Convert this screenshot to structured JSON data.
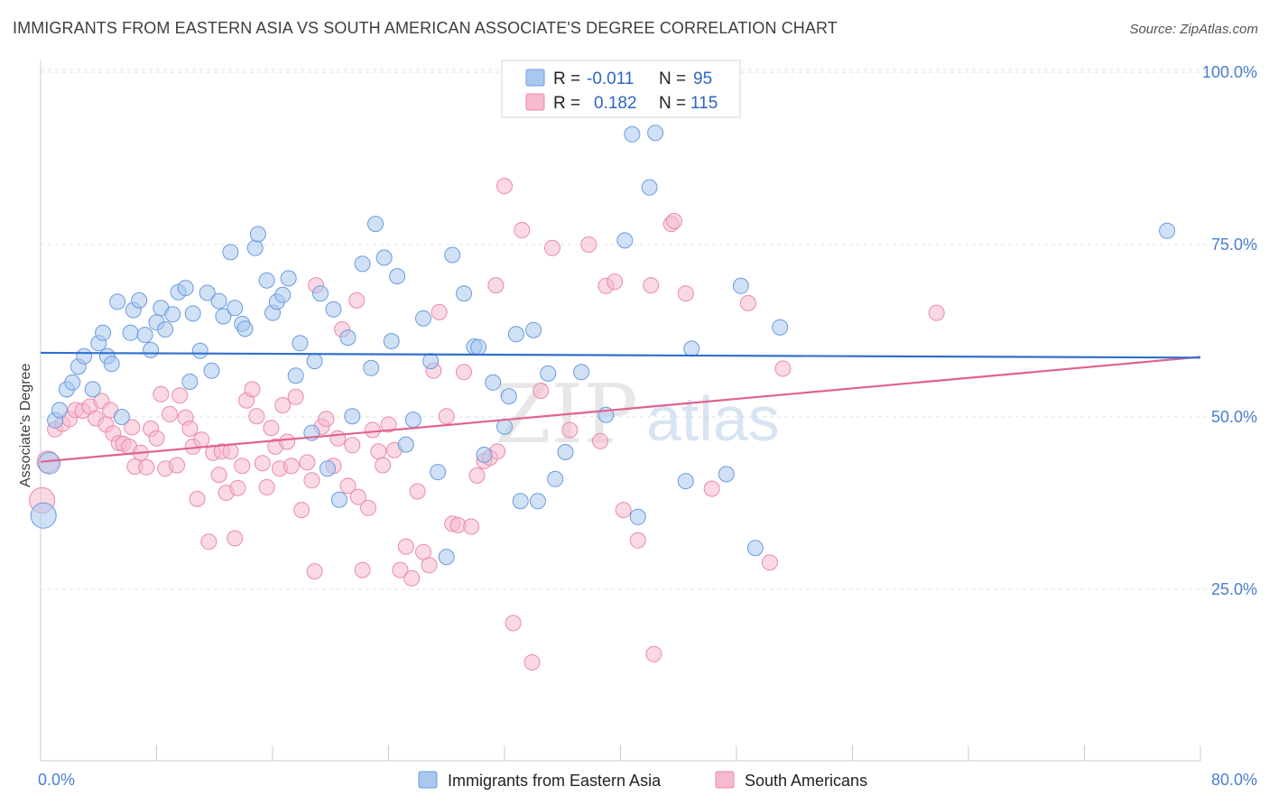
{
  "title": "IMMIGRANTS FROM EASTERN ASIA VS SOUTH AMERICAN ASSOCIATE'S DEGREE CORRELATION CHART",
  "source": "Source: ZipAtlas.com",
  "watermark": {
    "zip": "ZIP",
    "atlas": "atlas"
  },
  "colors": {
    "blue_fill": "#aac8ef",
    "blue_stroke": "#6b9be0",
    "blue_line": "#2f6fce",
    "pink_fill": "#f6b9cd",
    "pink_stroke": "#ea8aab",
    "pink_line": "#e0628f",
    "grid": "#dde2e8",
    "tick_text": "#4a7fd0"
  },
  "legend": {
    "r_label": "R =",
    "n_label": "N =",
    "rows": [
      {
        "r": "-0.011",
        "n": "95"
      },
      {
        "r": "0.182",
        "n": "115"
      }
    ]
  },
  "chart_data": {
    "type": "scatter",
    "title": "IMMIGRANTS FROM EASTERN ASIA VS SOUTH AMERICAN ASSOCIATE'S DEGREE CORRELATION CHART",
    "xlabel": "",
    "ylabel": "Associate's Degree",
    "xlim": [
      0,
      80
    ],
    "ylim": [
      0,
      105
    ],
    "x_ticks": [
      "0.0%",
      "80.0%"
    ],
    "y_ticks": [
      {
        "v": 100,
        "label": "100.0%"
      },
      {
        "v": 75,
        "label": "75.0%"
      },
      {
        "v": 50,
        "label": "50.0%"
      },
      {
        "v": 25,
        "label": "25.0%"
      }
    ],
    "grid": true,
    "legend_position": "top-center",
    "series": [
      {
        "name": "Immigrants from Eastern Asia",
        "color": "#aac8ef",
        "trend": {
          "y0": 59.3,
          "y1": 58.6
        },
        "points": [
          [
            0.2,
            35.7
          ],
          [
            0.6,
            43.3
          ],
          [
            1.0,
            49.5
          ],
          [
            1.3,
            51.0
          ],
          [
            1.8,
            54.0
          ],
          [
            2.2,
            55.0
          ],
          [
            2.6,
            57.3
          ],
          [
            3.0,
            58.8
          ],
          [
            3.6,
            54.0
          ],
          [
            4.0,
            60.7
          ],
          [
            4.3,
            62.2
          ],
          [
            4.6,
            58.8
          ],
          [
            4.9,
            57.7
          ],
          [
            5.3,
            66.7
          ],
          [
            5.6,
            50.0
          ],
          [
            6.2,
            62.2
          ],
          [
            6.4,
            65.5
          ],
          [
            6.8,
            66.9
          ],
          [
            7.2,
            61.9
          ],
          [
            7.6,
            59.7
          ],
          [
            8.0,
            63.7
          ],
          [
            8.3,
            65.8
          ],
          [
            8.6,
            62.7
          ],
          [
            9.1,
            64.9
          ],
          [
            9.5,
            68.1
          ],
          [
            10.0,
            68.7
          ],
          [
            10.3,
            55.1
          ],
          [
            10.5,
            65.0
          ],
          [
            11.0,
            59.6
          ],
          [
            11.5,
            68.0
          ],
          [
            11.8,
            56.7
          ],
          [
            12.3,
            66.8
          ],
          [
            12.6,
            64.6
          ],
          [
            13.1,
            73.9
          ],
          [
            13.4,
            65.8
          ],
          [
            13.9,
            63.5
          ],
          [
            14.1,
            62.8
          ],
          [
            14.8,
            74.5
          ],
          [
            15.0,
            76.5
          ],
          [
            15.6,
            69.8
          ],
          [
            16.0,
            65.1
          ],
          [
            16.3,
            66.7
          ],
          [
            16.7,
            67.7
          ],
          [
            17.1,
            70.1
          ],
          [
            17.6,
            56.0
          ],
          [
            17.9,
            60.7
          ],
          [
            18.7,
            47.7
          ],
          [
            18.9,
            58.1
          ],
          [
            19.3,
            67.9
          ],
          [
            19.8,
            42.5
          ],
          [
            20.2,
            65.6
          ],
          [
            20.6,
            38.0
          ],
          [
            21.2,
            61.5
          ],
          [
            21.5,
            50.1
          ],
          [
            22.2,
            72.2
          ],
          [
            22.8,
            57.1
          ],
          [
            23.1,
            78.0
          ],
          [
            23.7,
            73.1
          ],
          [
            24.2,
            61.0
          ],
          [
            24.6,
            70.4
          ],
          [
            25.2,
            46.0
          ],
          [
            25.7,
            49.6
          ],
          [
            26.4,
            64.3
          ],
          [
            26.9,
            58.1
          ],
          [
            27.4,
            42.0
          ],
          [
            28.0,
            29.7
          ],
          [
            28.4,
            73.5
          ],
          [
            29.2,
            67.9
          ],
          [
            29.9,
            60.2
          ],
          [
            30.2,
            60.1
          ],
          [
            30.6,
            44.5
          ],
          [
            31.2,
            55.0
          ],
          [
            32.0,
            48.6
          ],
          [
            32.3,
            53.0
          ],
          [
            32.8,
            62.0
          ],
          [
            33.1,
            37.8
          ],
          [
            34.0,
            62.6
          ],
          [
            34.3,
            37.8
          ],
          [
            35.0,
            56.3
          ],
          [
            35.5,
            41.0
          ],
          [
            36.2,
            44.9
          ],
          [
            37.3,
            56.5
          ],
          [
            39.0,
            50.3
          ],
          [
            40.3,
            75.6
          ],
          [
            40.8,
            91.0
          ],
          [
            41.2,
            35.5
          ],
          [
            42.0,
            83.3
          ],
          [
            42.4,
            91.2
          ],
          [
            44.5,
            40.7
          ],
          [
            44.9,
            59.9
          ],
          [
            47.3,
            41.7
          ],
          [
            48.3,
            69.0
          ],
          [
            49.3,
            31.0
          ],
          [
            51.0,
            63.0
          ],
          [
            77.7,
            77.0
          ]
        ]
      },
      {
        "name": "South Americans",
        "color": "#f6b9cd",
        "trend": {
          "y0": 43.5,
          "y1": 58.7
        },
        "points": [
          [
            0.1,
            37.9
          ],
          [
            0.5,
            43.5
          ],
          [
            1.0,
            48.2
          ],
          [
            1.5,
            49.0
          ],
          [
            2.0,
            49.7
          ],
          [
            2.4,
            51.0
          ],
          [
            2.9,
            50.9
          ],
          [
            3.4,
            51.5
          ],
          [
            3.8,
            49.8
          ],
          [
            4.2,
            52.3
          ],
          [
            4.5,
            48.9
          ],
          [
            4.8,
            51.0
          ],
          [
            5.0,
            47.6
          ],
          [
            5.4,
            46.2
          ],
          [
            5.7,
            46.1
          ],
          [
            6.1,
            45.7
          ],
          [
            6.3,
            48.5
          ],
          [
            6.5,
            42.8
          ],
          [
            6.9,
            44.8
          ],
          [
            7.3,
            42.7
          ],
          [
            7.6,
            48.3
          ],
          [
            8.0,
            46.9
          ],
          [
            8.3,
            53.3
          ],
          [
            8.6,
            42.5
          ],
          [
            8.9,
            50.4
          ],
          [
            9.4,
            43.0
          ],
          [
            9.6,
            53.1
          ],
          [
            10.0,
            49.9
          ],
          [
            10.3,
            48.3
          ],
          [
            10.5,
            45.7
          ],
          [
            10.8,
            38.1
          ],
          [
            11.1,
            46.7
          ],
          [
            11.6,
            31.9
          ],
          [
            11.9,
            44.8
          ],
          [
            12.3,
            41.6
          ],
          [
            12.5,
            45.0
          ],
          [
            12.8,
            39.0
          ],
          [
            13.1,
            45.0
          ],
          [
            13.4,
            32.4
          ],
          [
            13.6,
            39.7
          ],
          [
            13.9,
            42.9
          ],
          [
            14.2,
            52.4
          ],
          [
            14.6,
            54.0
          ],
          [
            14.9,
            50.1
          ],
          [
            15.3,
            43.3
          ],
          [
            15.6,
            39.8
          ],
          [
            15.9,
            48.4
          ],
          [
            16.2,
            45.7
          ],
          [
            16.5,
            42.5
          ],
          [
            16.7,
            51.7
          ],
          [
            17.0,
            46.4
          ],
          [
            17.3,
            42.9
          ],
          [
            17.6,
            52.9
          ],
          [
            18.0,
            36.5
          ],
          [
            18.4,
            43.4
          ],
          [
            18.7,
            40.8
          ],
          [
            18.9,
            27.6
          ],
          [
            19.0,
            69.1
          ],
          [
            19.4,
            48.6
          ],
          [
            19.7,
            49.7
          ],
          [
            20.2,
            42.9
          ],
          [
            20.5,
            46.9
          ],
          [
            20.8,
            62.7
          ],
          [
            21.2,
            40.0
          ],
          [
            21.5,
            45.9
          ],
          [
            21.9,
            38.4
          ],
          [
            22.2,
            27.8
          ],
          [
            22.6,
            36.8
          ],
          [
            22.9,
            48.1
          ],
          [
            23.3,
            45.0
          ],
          [
            23.6,
            43.0
          ],
          [
            24.0,
            48.9
          ],
          [
            24.4,
            45.2
          ],
          [
            24.8,
            27.8
          ],
          [
            25.2,
            31.2
          ],
          [
            25.6,
            26.6
          ],
          [
            26.0,
            39.2
          ],
          [
            26.4,
            30.4
          ],
          [
            26.8,
            28.5
          ],
          [
            27.1,
            56.7
          ],
          [
            27.5,
            65.2
          ],
          [
            28.0,
            50.1
          ],
          [
            28.4,
            34.5
          ],
          [
            28.8,
            34.3
          ],
          [
            29.2,
            56.5
          ],
          [
            29.7,
            34.1
          ],
          [
            30.1,
            41.5
          ],
          [
            30.6,
            43.6
          ],
          [
            31.0,
            44.1
          ],
          [
            31.4,
            69.1
          ],
          [
            32.0,
            83.5
          ],
          [
            32.6,
            20.1
          ],
          [
            33.2,
            77.1
          ],
          [
            33.9,
            14.4
          ],
          [
            34.5,
            53.8
          ],
          [
            35.3,
            74.5
          ],
          [
            36.5,
            48.1
          ],
          [
            37.8,
            75.0
          ],
          [
            38.6,
            46.5
          ],
          [
            39.0,
            69.0
          ],
          [
            39.6,
            69.6
          ],
          [
            40.2,
            36.5
          ],
          [
            41.2,
            32.1
          ],
          [
            42.1,
            69.1
          ],
          [
            42.3,
            15.6
          ],
          [
            43.5,
            78.0
          ],
          [
            43.7,
            78.4
          ],
          [
            44.5,
            67.9
          ],
          [
            46.3,
            39.6
          ],
          [
            48.8,
            66.5
          ],
          [
            50.3,
            28.9
          ],
          [
            51.2,
            57.0
          ],
          [
            61.8,
            65.1
          ],
          [
            31.5,
            45.0
          ],
          [
            21.8,
            66.9
          ]
        ]
      }
    ]
  }
}
